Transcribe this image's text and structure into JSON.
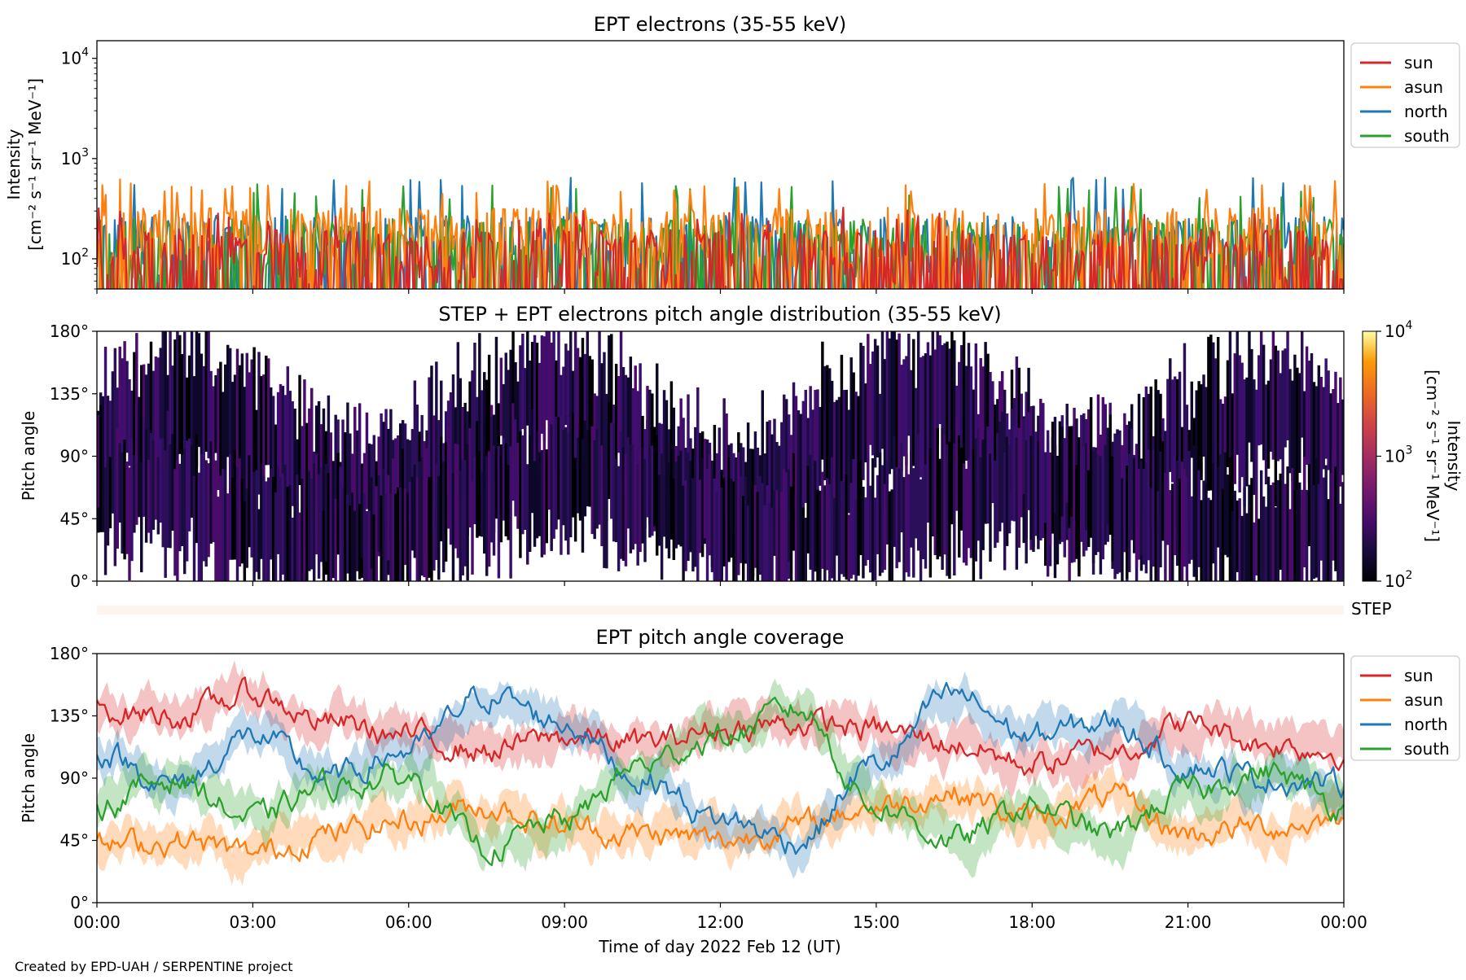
{
  "figure": {
    "credit": "Created by EPD-UAH / SERPENTINE project",
    "xlabel": "Time of day 2022 Feb 12 (UT)",
    "xticks": [
      "00:00",
      "03:00",
      "06:00",
      "09:00",
      "12:00",
      "15:00",
      "18:00",
      "21:00",
      "00:00"
    ],
    "series_names": [
      "sun",
      "asun",
      "north",
      "south"
    ],
    "series_colors": {
      "sun": "#d62728",
      "asun": "#ff7f0e",
      "north": "#1f77b4",
      "south": "#2ca02c"
    },
    "angle_ticks": [
      "0°",
      "45°",
      "90°",
      "135°",
      "180°"
    ]
  },
  "chart_data": [
    {
      "type": "line",
      "title": "EPT electrons (35-55 keV)",
      "ylabel_line1": "Intensity",
      "ylabel_line2": "[cm⁻² s⁻¹ sr⁻¹ MeV⁻¹]",
      "yscale": "log",
      "ylim": [
        50,
        15000
      ],
      "yticks": [
        {
          "value": 100,
          "base": "10",
          "exp": "2"
        },
        {
          "value": 1000,
          "base": "10",
          "exp": "3"
        },
        {
          "value": 10000,
          "base": "10",
          "exp": "4"
        }
      ],
      "xlim_hours": [
        0,
        24
      ],
      "legend": "outside-right",
      "series": [
        {
          "name": "north",
          "color": "#1f77b4",
          "approx_level": 150,
          "max": 650
        },
        {
          "name": "south",
          "color": "#2ca02c",
          "approx_level": 140,
          "max": 560
        },
        {
          "name": "asun",
          "color": "#ff7f0e",
          "approx_level": 180,
          "max": 620
        },
        {
          "name": "sun",
          "color": "#d62728",
          "approx_level": 110,
          "max": 330
        }
      ]
    },
    {
      "type": "heatmap",
      "title": "STEP + EPT electrons pitch angle distribution (35-55 keV)",
      "ylabel": "Pitch angle",
      "ylim": [
        0,
        180
      ],
      "xlim_hours": [
        0,
        24
      ],
      "colormap": "inferno",
      "colorbar": {
        "label_line1": "Intensity",
        "label_line2": "[cm⁻² s⁻¹ sr⁻¹ MeV⁻¹]",
        "scale": "log",
        "range": [
          100,
          10000
        ],
        "ticks": [
          {
            "value": 100,
            "base": "10",
            "exp": "2"
          },
          {
            "value": 1000,
            "base": "10",
            "exp": "3"
          },
          {
            "value": 10000,
            "base": "10",
            "exp": "4"
          }
        ]
      },
      "step_label": "STEP"
    },
    {
      "type": "line",
      "title": "EPT pitch angle coverage",
      "ylabel": "Pitch angle",
      "ylim": [
        0,
        180
      ],
      "xlim_hours": [
        0,
        24
      ],
      "legend": "outside-right",
      "series": [
        {
          "name": "sun",
          "color": "#d62728",
          "x_hours": [
            0,
            1.5,
            3,
            4.5,
            6,
            7.5,
            9,
            10.5,
            12,
            13.5,
            15,
            16.5,
            18,
            19.5,
            21,
            22.5,
            24
          ],
          "values": [
            140,
            135,
            150,
            130,
            120,
            110,
            120,
            115,
            125,
            130,
            125,
            115,
            100,
            110,
            130,
            115,
            110
          ]
        },
        {
          "name": "asun",
          "color": "#ff7f0e",
          "x_hours": [
            0,
            1.5,
            3,
            4.5,
            6,
            7.5,
            9,
            10.5,
            12,
            13.5,
            15,
            16.5,
            18,
            19.5,
            21,
            22.5,
            24
          ],
          "values": [
            40,
            45,
            35,
            50,
            60,
            70,
            55,
            50,
            45,
            55,
            70,
            80,
            60,
            75,
            50,
            55,
            60
          ]
        },
        {
          "name": "north",
          "color": "#1f77b4",
          "x_hours": [
            0,
            1.5,
            3,
            4.5,
            6,
            7.5,
            9,
            10.5,
            12,
            13.5,
            15,
            16.5,
            18,
            19.5,
            21,
            22.5,
            24
          ],
          "values": [
            110,
            85,
            120,
            90,
            110,
            150,
            130,
            90,
            60,
            45,
            100,
            150,
            120,
            130,
            100,
            90,
            85
          ]
        },
        {
          "name": "south",
          "color": "#2ca02c",
          "x_hours": [
            0,
            1.5,
            3,
            4.5,
            6,
            7.5,
            9,
            10.5,
            12,
            13.5,
            15,
            16.5,
            18,
            19.5,
            21,
            22.5,
            24
          ],
          "values": [
            70,
            90,
            60,
            85,
            90,
            40,
            60,
            100,
            120,
            140,
            70,
            45,
            70,
            50,
            80,
            95,
            70
          ]
        }
      ]
    }
  ]
}
